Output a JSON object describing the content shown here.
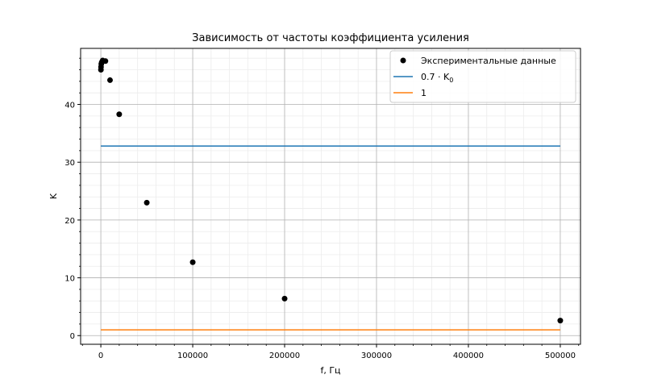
{
  "chart_data": {
    "type": "scatter",
    "title": "Зависимость от частоты коэффициента усиления",
    "xlabel": "f, Гц",
    "ylabel": "K",
    "xlim": [
      -22000,
      522000
    ],
    "ylim": [
      -1.5,
      49.7
    ],
    "xticks": [
      0,
      100000,
      200000,
      300000,
      400000,
      500000
    ],
    "xtick_labels": [
      "0",
      "100000",
      "200000",
      "300000",
      "400000",
      "500000"
    ],
    "yticks": [
      0,
      10,
      20,
      30,
      40
    ],
    "ytick_labels": [
      "0",
      "10",
      "20",
      "30",
      "40"
    ],
    "grid": true,
    "minor_grid": true,
    "legend_position": "top-right",
    "series": [
      {
        "name": "Экспериментальные данные",
        "kind": "points",
        "color": "#000000",
        "x": [
          100,
          200,
          500,
          1000,
          2000,
          5000,
          10000,
          20000,
          50000,
          100000,
          200000,
          500000
        ],
        "y": [
          46.0,
          46.5,
          47.0,
          47.3,
          47.6,
          47.5,
          44.2,
          38.3,
          23.0,
          12.7,
          6.4,
          2.6
        ]
      },
      {
        "name": "0.7 · K0",
        "kind": "hline",
        "color": "#1f77b4",
        "x": [
          0,
          500000
        ],
        "y": [
          32.8,
          32.8
        ]
      },
      {
        "name": "1",
        "kind": "hline",
        "color": "#ff7f0e",
        "x": [
          0,
          500000
        ],
        "y": [
          1,
          1
        ]
      }
    ],
    "legend": {
      "entries": [
        {
          "label": "Экспериментальные данные",
          "marker": "point",
          "color": "#000000"
        },
        {
          "label": "0.7 · K",
          "subscript": "0",
          "marker": "line",
          "color": "#1f77b4"
        },
        {
          "label": "1",
          "marker": "line",
          "color": "#ff7f0e"
        }
      ]
    }
  }
}
